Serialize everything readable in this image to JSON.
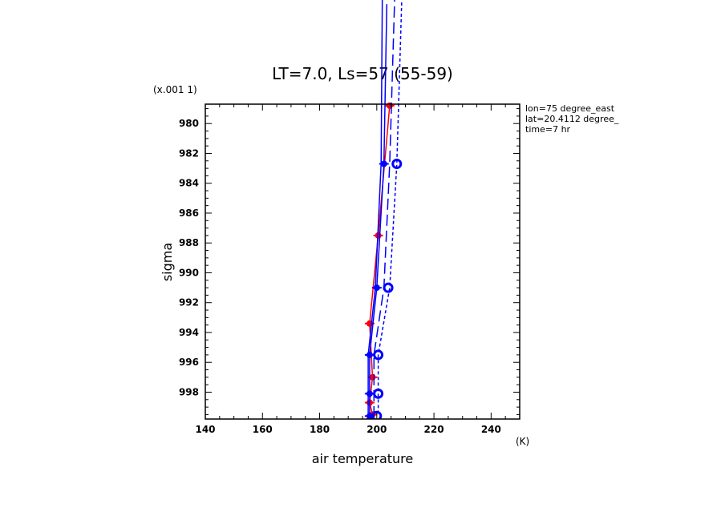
{
  "chart_data": {
    "type": "line",
    "title": "LT=7.0, Ls=57 (55-59)",
    "xlabel": "air temperature",
    "ylabel": "sigma",
    "x_unit": "(K)",
    "y_scale_note": "(x.001 1)",
    "info": [
      "lon=75 degree_east",
      "lat=20.4112 degree_",
      "time=7 hr"
    ],
    "xlim": [
      140,
      250
    ],
    "ylim": [
      999.8,
      978.7
    ],
    "y_inverted": true,
    "x_ticks": [
      140,
      160,
      180,
      200,
      220,
      240
    ],
    "y_ticks": [
      980,
      982,
      984,
      986,
      988,
      990,
      992,
      994,
      996,
      998
    ],
    "grid": false,
    "series": [
      {
        "color": "#ff0000",
        "style": "solid",
        "marker": "dot",
        "points": [
          [
            204.5,
            978.8
          ],
          [
            200.5,
            987.5
          ],
          [
            197.5,
            993.4
          ],
          [
            198.5,
            997.0
          ],
          [
            197.5,
            998.7
          ],
          [
            198.5,
            999.5
          ],
          [
            198.0,
            999.8
          ]
        ]
      },
      {
        "color": "#0000ff",
        "style": "solid",
        "marker": "dot",
        "points": [
          [
            203.5,
            972.0
          ],
          [
            202.5,
            982.7
          ],
          [
            200.0,
            991.0
          ],
          [
            197.5,
            995.5
          ],
          [
            197.5,
            998.1
          ],
          [
            197.5,
            999.6
          ]
        ]
      },
      {
        "color": "#0000ff",
        "style": "solid",
        "marker": "none",
        "points": [
          [
            202.0,
            970.0
          ],
          [
            201.5,
            982.7
          ],
          [
            199.5,
            991.0
          ],
          [
            197.0,
            995.5
          ],
          [
            197.0,
            998.1
          ],
          [
            197.0,
            999.6
          ]
        ]
      },
      {
        "color": "#0000ff",
        "style": "dash",
        "marker": "none",
        "points": [
          [
            206.5,
            970.0
          ],
          [
            204.5,
            982.7
          ],
          [
            202.5,
            991.0
          ],
          [
            199.0,
            995.5
          ],
          [
            199.0,
            998.1
          ],
          [
            199.0,
            999.6
          ]
        ]
      },
      {
        "color": "#0000ff",
        "style": "dot",
        "marker": "none",
        "points": [
          [
            209.0,
            970.0
          ],
          [
            207.0,
            982.7
          ],
          [
            204.5,
            991.0
          ],
          [
            200.5,
            995.5
          ],
          [
            200.5,
            998.1
          ],
          [
            200.5,
            999.6
          ]
        ]
      },
      {
        "color": "#0000ff",
        "style": "none",
        "marker": "circle",
        "points": [
          [
            207.0,
            982.7
          ],
          [
            204.0,
            991.0
          ],
          [
            200.5,
            995.5
          ],
          [
            200.5,
            998.1
          ],
          [
            200.0,
            999.6
          ]
        ]
      }
    ]
  }
}
